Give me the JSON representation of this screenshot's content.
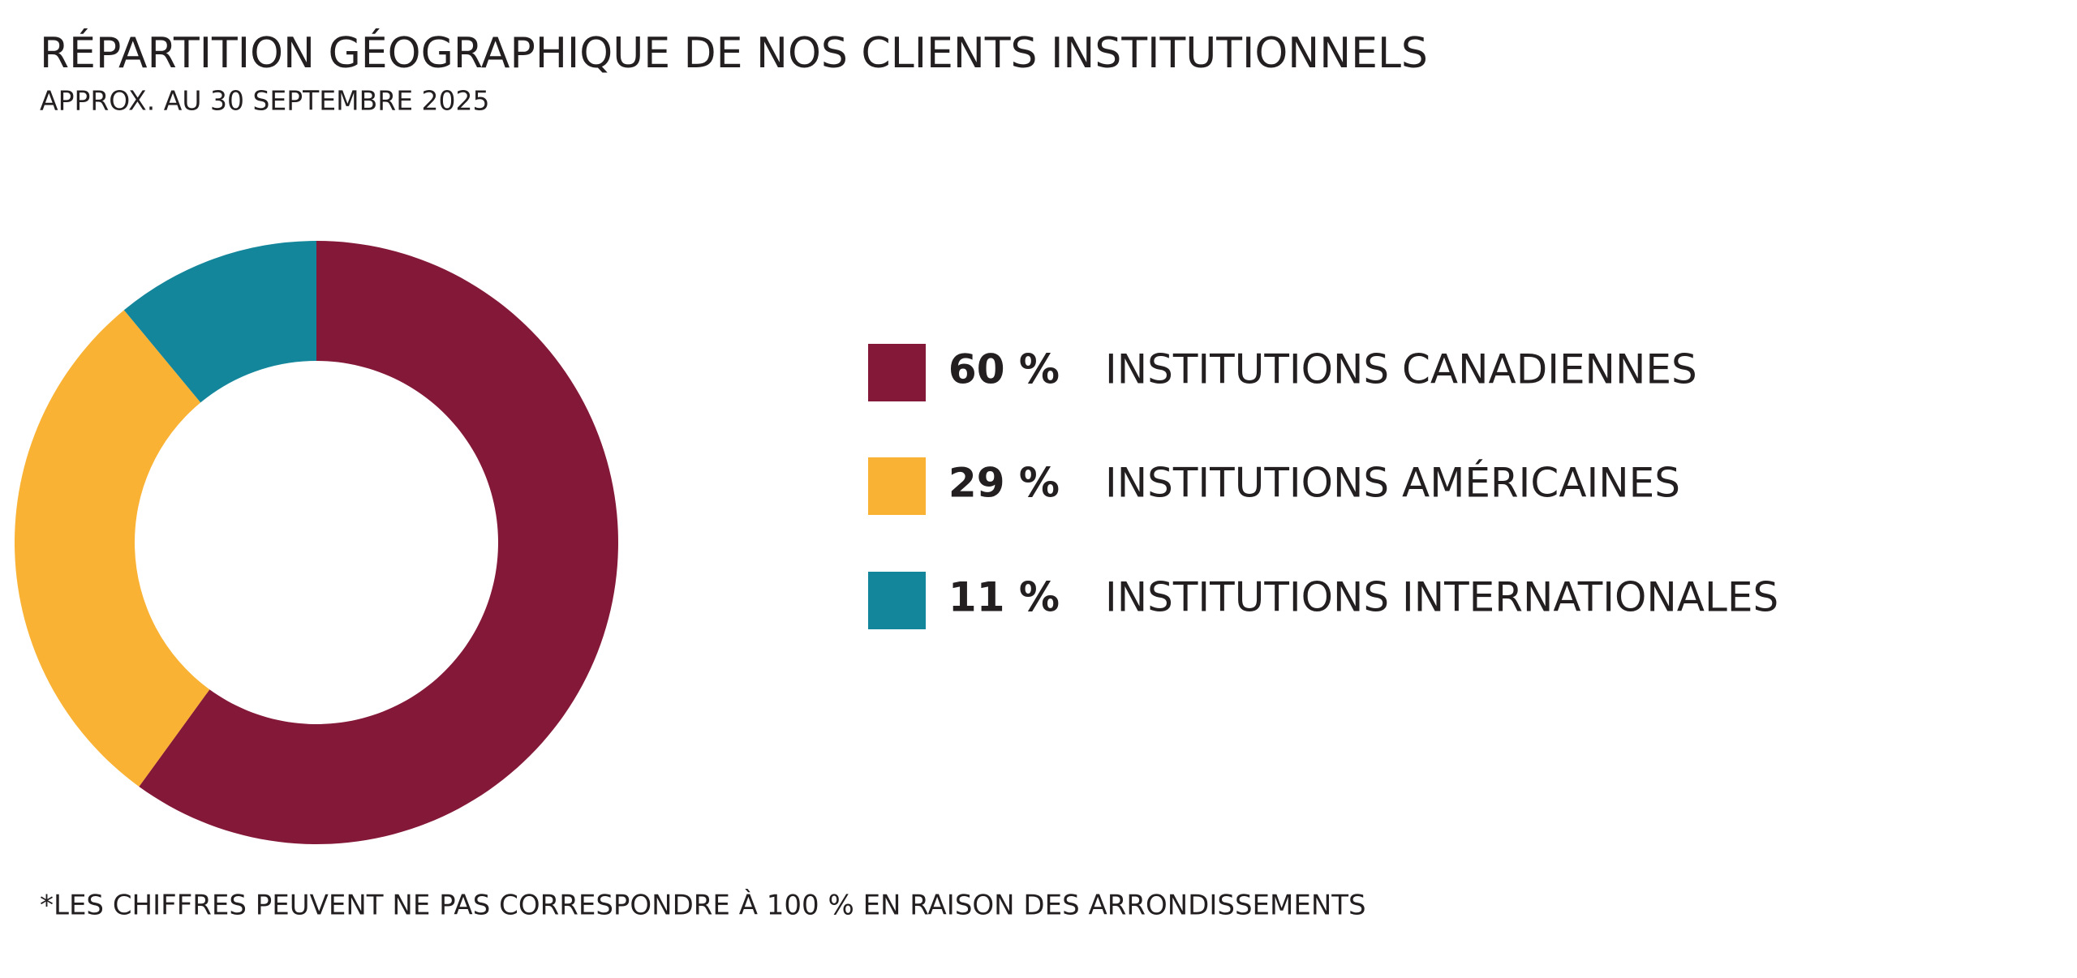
{
  "chart_data": {
    "type": "pie",
    "title": "RÉPARTITION GÉOGRAPHIQUE DE NOS CLIENTS INSTITUTIONNELS",
    "subtitle": "APPROX. AU 30 SEPTEMBRE 2025",
    "categories": [
      "INSTITUTIONS CANADIENNES",
      "INSTITUTIONS AMÉRICAINES",
      "INSTITUTIONS INTERNATIONALES"
    ],
    "values": [
      60,
      29,
      11
    ],
    "value_labels": [
      "60 %",
      "29 %",
      "11 %"
    ],
    "colors": [
      "#841838",
      "#f9b233",
      "#13869b"
    ],
    "donut": true,
    "legend": "right",
    "footnote": "*LES CHIFFRES PEUVENT NE PAS CORRESPONDRE À 100 % EN RAISON DES ARRONDISSEMENTS"
  }
}
